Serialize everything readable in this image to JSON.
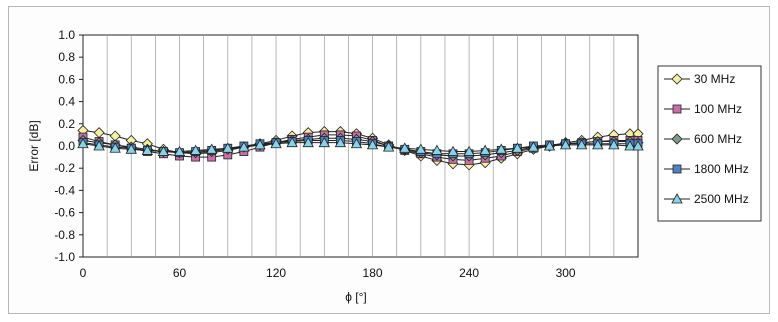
{
  "chart_data": {
    "type": "line",
    "title": "",
    "xlabel": "ϕ [°]",
    "ylabel": "Error [dB]",
    "xlim": [
      0,
      345
    ],
    "ylim": [
      -1.0,
      1.0
    ],
    "x_ticks": [
      0,
      60,
      120,
      180,
      240,
      300
    ],
    "y_ticks": [
      "1.0",
      "0.8",
      "0.6",
      "0.4",
      "0.2",
      "0.0",
      "-0.2",
      "-0.4",
      "-0.6",
      "-0.8",
      "-1.0"
    ],
    "grid": "vertical-every-15",
    "legend_position": "right",
    "x": [
      0,
      10,
      20,
      30,
      40,
      50,
      60,
      70,
      80,
      90,
      100,
      110,
      120,
      130,
      140,
      150,
      160,
      170,
      180,
      190,
      200,
      210,
      220,
      230,
      240,
      250,
      260,
      270,
      280,
      290,
      300,
      310,
      320,
      330,
      340,
      345
    ],
    "series": [
      {
        "name": "30 MHz",
        "marker": "diamond",
        "color": "#f4f0a0",
        "values": [
          0.14,
          0.12,
          0.09,
          0.05,
          0.02,
          -0.03,
          -0.06,
          -0.07,
          -0.06,
          -0.04,
          -0.01,
          0.02,
          0.05,
          0.09,
          0.12,
          0.13,
          0.13,
          0.11,
          0.07,
          0.01,
          -0.04,
          -0.09,
          -0.13,
          -0.16,
          -0.17,
          -0.15,
          -0.11,
          -0.07,
          -0.03,
          0.0,
          0.03,
          0.05,
          0.08,
          0.1,
          0.11,
          0.11
        ]
      },
      {
        "name": "100 MHz",
        "marker": "square",
        "color": "#c86fa8",
        "values": [
          0.08,
          0.04,
          0.01,
          -0.02,
          -0.05,
          -0.07,
          -0.09,
          -0.1,
          -0.1,
          -0.08,
          -0.05,
          -0.01,
          0.03,
          0.06,
          0.08,
          0.1,
          0.1,
          0.09,
          0.05,
          0.0,
          -0.04,
          -0.07,
          -0.1,
          -0.12,
          -0.13,
          -0.11,
          -0.09,
          -0.05,
          -0.02,
          0.0,
          0.02,
          0.03,
          0.04,
          0.05,
          0.05,
          0.05
        ]
      },
      {
        "name": "600 MHz",
        "marker": "diamond",
        "color": "#7a9a8a",
        "values": [
          0.05,
          0.03,
          0.01,
          -0.01,
          -0.03,
          -0.05,
          -0.06,
          -0.06,
          -0.05,
          -0.03,
          -0.01,
          0.01,
          0.03,
          0.05,
          0.06,
          0.07,
          0.07,
          0.06,
          0.04,
          0.0,
          -0.03,
          -0.06,
          -0.08,
          -0.09,
          -0.09,
          -0.08,
          -0.06,
          -0.04,
          -0.01,
          0.0,
          0.02,
          0.03,
          0.04,
          0.04,
          0.04,
          0.03
        ]
      },
      {
        "name": "1800 MHz",
        "marker": "square",
        "color": "#4f82c0",
        "values": [
          0.03,
          0.01,
          -0.01,
          -0.02,
          -0.04,
          -0.05,
          -0.06,
          -0.05,
          -0.04,
          -0.02,
          0.0,
          0.02,
          0.03,
          0.04,
          0.05,
          0.05,
          0.05,
          0.04,
          0.02,
          -0.01,
          -0.03,
          -0.05,
          -0.07,
          -0.07,
          -0.07,
          -0.06,
          -0.04,
          -0.02,
          0.0,
          0.01,
          0.02,
          0.02,
          0.02,
          0.02,
          0.02,
          0.02
        ]
      },
      {
        "name": "2500 MHz",
        "marker": "triangle",
        "color": "#86d4e8",
        "values": [
          0.02,
          0.0,
          -0.02,
          -0.03,
          -0.04,
          -0.05,
          -0.05,
          -0.04,
          -0.03,
          -0.02,
          -0.01,
          0.01,
          0.02,
          0.03,
          0.03,
          0.03,
          0.03,
          0.02,
          0.01,
          -0.01,
          -0.02,
          -0.03,
          -0.04,
          -0.05,
          -0.05,
          -0.04,
          -0.03,
          -0.02,
          -0.01,
          0.0,
          0.01,
          0.01,
          0.01,
          0.01,
          0.0,
          0.0
        ]
      }
    ]
  }
}
